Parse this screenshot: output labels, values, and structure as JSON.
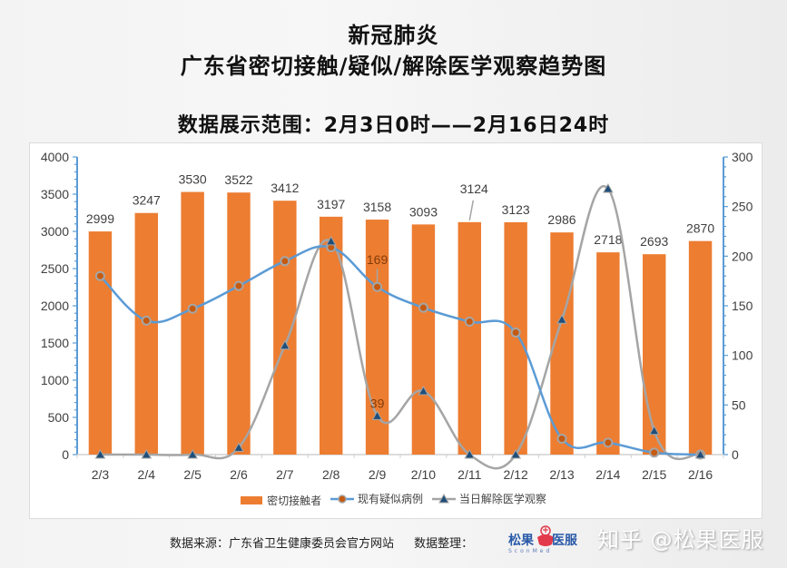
{
  "title": {
    "line1": "新冠肺炎",
    "line2": "广东省密切接触/疑似/解除医学观察趋势图",
    "subtitle": "数据展示范围：2月3日0时——2月16日24时"
  },
  "chart_data": {
    "type": "bar+line",
    "categories": [
      "2/3",
      "2/4",
      "2/5",
      "2/6",
      "2/7",
      "2/8",
      "2/9",
      "2/10",
      "2/11",
      "2/12",
      "2/13",
      "2/14",
      "2/15",
      "2/16"
    ],
    "left_axis": {
      "ylim": [
        0,
        4000
      ],
      "ticks": [
        0,
        500,
        1000,
        1500,
        2000,
        2500,
        3000,
        3500,
        4000
      ]
    },
    "right_axis": {
      "ylim": [
        0,
        300
      ],
      "ticks": [
        0,
        50,
        100,
        150,
        200,
        250,
        300
      ]
    },
    "series": [
      {
        "name": "密切接触者",
        "kind": "bar",
        "axis": "left",
        "color": "#ED7D31",
        "values": [
          2999,
          3247,
          3530,
          3522,
          3412,
          3197,
          3158,
          3093,
          3124,
          3123,
          2986,
          2718,
          2693,
          2870
        ],
        "labels": true
      },
      {
        "name": "现有疑似病例",
        "kind": "line",
        "axis": "right",
        "color": "#5B9BD5",
        "marker": "circle",
        "values": [
          180,
          135,
          147,
          170,
          195,
          209,
          169,
          148,
          134,
          123,
          16,
          12,
          2,
          0
        ],
        "annotated": [
          {
            "index": 6,
            "label": "169"
          }
        ]
      },
      {
        "name": "当日解除医学观察",
        "kind": "line",
        "axis": "right",
        "color": "#A5A5A5",
        "marker": "triangle",
        "values": [
          0,
          0,
          0,
          7,
          110,
          215,
          39,
          64,
          0,
          0,
          136,
          268,
          24,
          0
        ],
        "annotated": [
          {
            "index": 6,
            "label": "39"
          }
        ]
      }
    ],
    "grid": false,
    "legend": "bottom"
  },
  "legend": {
    "items": [
      "密切接触者",
      "现有疑似病例",
      "当日解除医学观察"
    ]
  },
  "footer": {
    "source": "数据来源：广东省卫生健康委员会官方网站",
    "organizer": "数据整理：",
    "logo_left": "松果",
    "logo_right": "医服",
    "logo_sub": "SconMed",
    "watermark": "知乎 @松果医服"
  },
  "colors": {
    "bar": "#ED7D31",
    "line_suspected": "#5B9BD5",
    "line_released": "#A5A5A5",
    "axis": "#5B9BD5",
    "marker_suspected": "#C55A11",
    "marker_released": "#1F4E79"
  }
}
